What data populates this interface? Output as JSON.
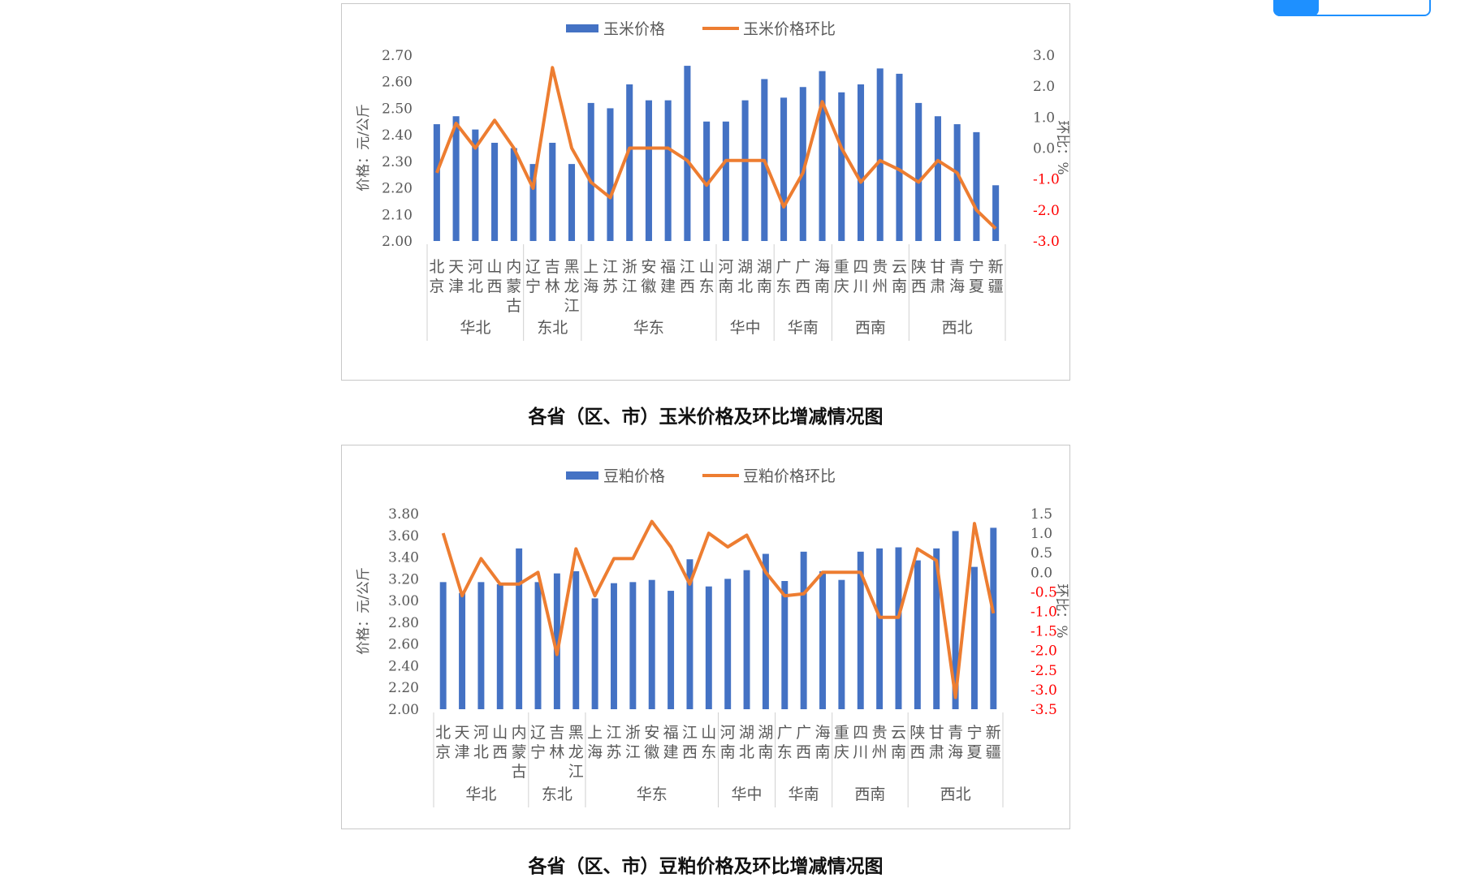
{
  "charts": [
    {
      "caption": "各省（区、市）玉米价格及环比增减情况图",
      "legend": {
        "bar": "玉米价格",
        "line": "玉米价格环比"
      },
      "ylabel_left": "价格：元/公斤",
      "ylabel_right": "环比：%",
      "left_ticks": [
        "2.00",
        "2.10",
        "2.20",
        "2.30",
        "2.40",
        "2.50",
        "2.60",
        "2.70"
      ],
      "right_ticks": [
        "-3.0",
        "-2.0",
        "-1.0",
        "0.0",
        "1.0",
        "2.0",
        "3.0"
      ]
    },
    {
      "caption": "各省（区、市）豆粕价格及环比增减情况图",
      "legend": {
        "bar": "豆粕价格",
        "line": "豆粕价格环比"
      },
      "ylabel_left": "价格：元/公斤",
      "ylabel_right": "环比：%",
      "left_ticks": [
        "2.00",
        "2.20",
        "2.40",
        "2.60",
        "2.80",
        "3.00",
        "3.20",
        "3.40",
        "3.60",
        "3.80"
      ],
      "right_ticks": [
        "-3.5",
        "-3.0",
        "-2.5",
        "-2.0",
        "-1.5",
        "-1.0",
        "-0.5",
        "0.0",
        "0.5",
        "1.0",
        "1.5"
      ]
    }
  ],
  "chart_data": [
    {
      "type": "bar",
      "title": "各省（区、市）玉米价格及环比增减情况图",
      "categories": [
        "北京",
        "天津",
        "河北",
        "山西",
        "内蒙古",
        "辽宁",
        "吉林",
        "黑龙江",
        "上海",
        "江苏",
        "浙江",
        "安徽",
        "福建",
        "江西",
        "山东",
        "河南",
        "湖北",
        "湖南",
        "广东",
        "广西",
        "海南",
        "重庆",
        "四川",
        "贵州",
        "云南",
        "陕西",
        "甘肃",
        "青海",
        "宁夏",
        "新疆"
      ],
      "groups": [
        {
          "name": "华北",
          "count": 5
        },
        {
          "name": "东北",
          "count": 3
        },
        {
          "name": "华东",
          "count": 7
        },
        {
          "name": "华中",
          "count": 3
        },
        {
          "name": "华南",
          "count": 3
        },
        {
          "name": "西南",
          "count": 4
        },
        {
          "name": "西北",
          "count": 5
        }
      ],
      "series": [
        {
          "name": "玉米价格",
          "type": "bar",
          "axis": "left",
          "color": "#4472C4",
          "values": [
            2.44,
            2.47,
            2.42,
            2.37,
            2.35,
            2.29,
            2.37,
            2.29,
            2.52,
            2.5,
            2.59,
            2.53,
            2.53,
            2.66,
            2.45,
            2.45,
            2.53,
            2.61,
            2.54,
            2.58,
            2.64,
            2.56,
            2.59,
            2.65,
            2.63,
            2.52,
            2.47,
            2.44,
            2.41,
            2.21
          ]
        },
        {
          "name": "玉米价格环比",
          "type": "line",
          "axis": "right",
          "color": "#ED7D31",
          "values": [
            -0.8,
            0.8,
            0.0,
            0.9,
            0.0,
            -1.3,
            2.6,
            0.0,
            -1.1,
            -1.6,
            0.0,
            0.0,
            0.0,
            -0.4,
            -1.2,
            -0.4,
            -0.4,
            -0.4,
            -1.9,
            -0.8,
            1.5,
            0.0,
            -1.1,
            -0.4,
            -0.7,
            -1.1,
            -0.4,
            -0.8,
            -2.0,
            -2.6
          ]
        }
      ],
      "ylim_left": [
        2.0,
        2.7
      ],
      "ylim_right": [
        -3.0,
        3.0
      ],
      "ylabel_left": "价格：元/公斤",
      "ylabel_right": "环比：%",
      "legend_position": "top"
    },
    {
      "type": "bar",
      "title": "各省（区、市）豆粕价格及环比增减情况图",
      "categories": [
        "北京",
        "天津",
        "河北",
        "山西",
        "内蒙古",
        "辽宁",
        "吉林",
        "黑龙江",
        "上海",
        "江苏",
        "浙江",
        "安徽",
        "福建",
        "江西",
        "山东",
        "河南",
        "湖北",
        "湖南",
        "广东",
        "广西",
        "海南",
        "重庆",
        "四川",
        "贵州",
        "云南",
        "陕西",
        "甘肃",
        "青海",
        "宁夏",
        "新疆"
      ],
      "groups": [
        {
          "name": "华北",
          "count": 5
        },
        {
          "name": "东北",
          "count": 3
        },
        {
          "name": "华东",
          "count": 7
        },
        {
          "name": "华中",
          "count": 3
        },
        {
          "name": "华南",
          "count": 3
        },
        {
          "name": "西南",
          "count": 4
        },
        {
          "name": "西北",
          "count": 5
        }
      ],
      "series": [
        {
          "name": "豆粕价格",
          "type": "bar",
          "axis": "left",
          "color": "#4472C4",
          "values": [
            3.17,
            3.07,
            3.17,
            3.15,
            3.48,
            3.17,
            3.25,
            3.27,
            3.02,
            3.16,
            3.17,
            3.19,
            3.09,
            3.38,
            3.13,
            3.2,
            3.28,
            3.43,
            3.18,
            3.45,
            3.27,
            3.19,
            3.45,
            3.48,
            3.49,
            3.37,
            3.48,
            3.64,
            3.31,
            3.67
          ]
        },
        {
          "name": "豆粕价格环比",
          "type": "line",
          "axis": "right",
          "color": "#ED7D31",
          "values": [
            1.0,
            -0.6,
            0.35,
            -0.3,
            -0.3,
            0.0,
            -2.1,
            0.6,
            -0.6,
            0.35,
            0.35,
            1.3,
            0.65,
            -0.3,
            1.0,
            0.65,
            0.95,
            0.0,
            -0.6,
            -0.55,
            0.0,
            0.0,
            0.0,
            -1.15,
            -1.15,
            0.6,
            0.3,
            -3.2,
            1.25,
            -1.05
          ]
        }
      ],
      "ylim_left": [
        2.0,
        3.8
      ],
      "ylim_right": [
        -3.5,
        1.5
      ],
      "ylabel_left": "价格：元/公斤",
      "ylabel_right": "环比：%",
      "legend_position": "top"
    }
  ]
}
